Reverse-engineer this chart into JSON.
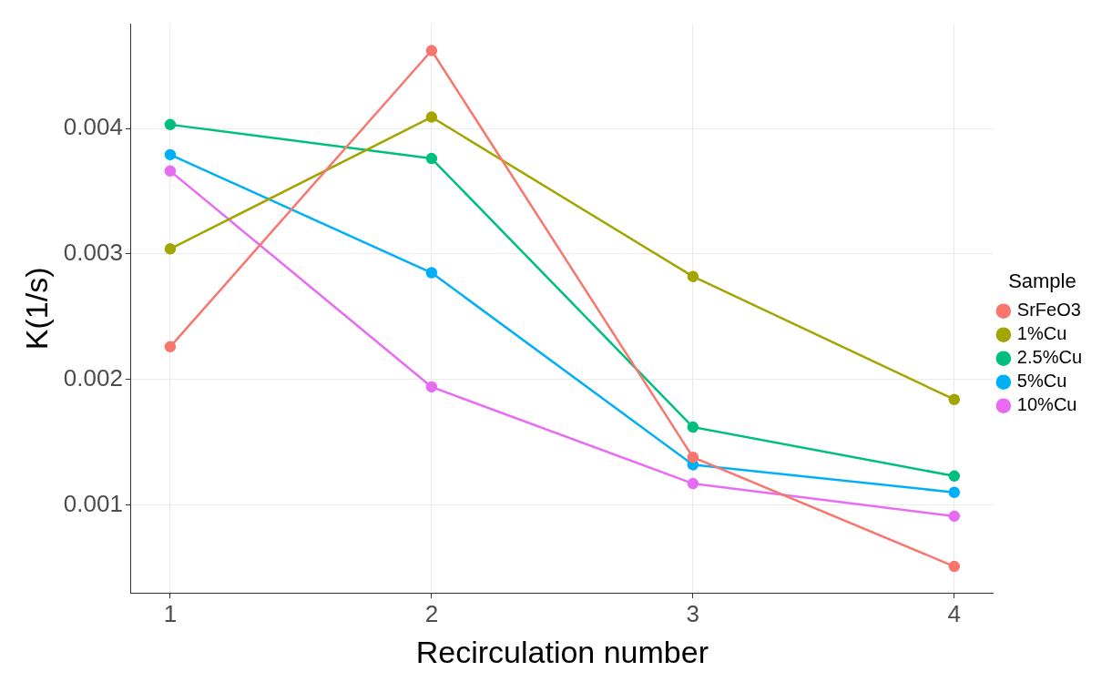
{
  "chart_data": {
    "type": "line",
    "xlabel": "Recirculation number",
    "ylabel": "K(1/s)",
    "legend_title": "Sample",
    "legend": "right",
    "grid": true,
    "marker": "circle",
    "line_style": "solid",
    "x": [
      1,
      2,
      3,
      4
    ],
    "xlim": [
      0.85,
      4.15
    ],
    "xticks": [
      1,
      2,
      3,
      4
    ],
    "ylim": [
      0.0003,
      0.00483
    ],
    "yticks": [
      0.001,
      0.002,
      0.003,
      0.004
    ],
    "series": [
      {
        "name": "SrFeO3",
        "color": "#f8766d",
        "values": [
          0.00226,
          0.00462,
          0.00138,
          0.00051
        ]
      },
      {
        "name": "1%Cu",
        "color": "#a3a500",
        "values": [
          0.00304,
          0.00409,
          0.00282,
          0.00184
        ]
      },
      {
        "name": "2.5%Cu",
        "color": "#00bf7d",
        "values": [
          0.00403,
          0.00376,
          0.00162,
          0.00123
        ]
      },
      {
        "name": "5%Cu",
        "color": "#00b0f6",
        "values": [
          0.00379,
          0.00285,
          0.00132,
          0.0011
        ]
      },
      {
        "name": "10%Cu",
        "color": "#e76bf3",
        "values": [
          0.00366,
          0.00194,
          0.00117,
          0.00091
        ]
      }
    ]
  }
}
